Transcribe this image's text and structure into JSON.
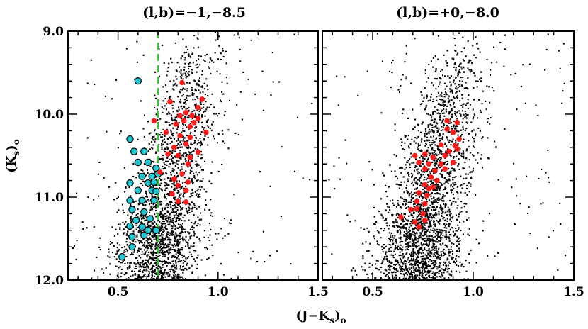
{
  "figure": {
    "xlabel": "(J−K",
    "xlabel_sub": "s",
    "xlabel_tail": ")",
    "xlabel_sub2": "o",
    "ylabel": "(K",
    "ylabel_sub": "s",
    "ylabel_tail": ")",
    "ylabel_sub2": "o"
  },
  "chart_data": [
    {
      "type": "scatter",
      "title": "(l,b)=−1,−8.5",
      "xlabel": "(J−Ks)o",
      "ylabel": "(Ks)o",
      "xlim": [
        0.25,
        1.5
      ],
      "ylim": [
        12.0,
        9.0
      ],
      "y_inverted": true,
      "x_ticks": [
        0.5,
        1.0,
        1.5
      ],
      "x_tick_labels": [
        "0.5",
        "1.0",
        "1.5"
      ],
      "y_ticks": [
        9.0,
        10.0,
        11.0,
        12.0
      ],
      "y_tick_labels": [
        "9.0",
        "10.0",
        "11.0",
        "12.0"
      ],
      "background_field": {
        "color": "#000000",
        "approx_count": 2300,
        "description": "field stars (black points)"
      },
      "vertical_line": {
        "x": 0.7,
        "color": "#22cc22",
        "style": "dashed"
      },
      "series": [
        {
          "name": "blue-selected stars",
          "color": "#1ec8d2",
          "marker": "circle-outlined",
          "points": [
            [
              0.6,
              9.6
            ],
            [
              0.56,
              10.3
            ],
            [
              0.58,
              10.45
            ],
            [
              0.63,
              10.45
            ],
            [
              0.6,
              10.58
            ],
            [
              0.65,
              10.58
            ],
            [
              0.69,
              10.65
            ],
            [
              0.62,
              10.75
            ],
            [
              0.67,
              10.75
            ],
            [
              0.7,
              10.72
            ],
            [
              0.56,
              10.83
            ],
            [
              0.65,
              10.83
            ],
            [
              0.68,
              10.82
            ],
            [
              0.6,
              10.92
            ],
            [
              0.67,
              10.92
            ],
            [
              0.69,
              10.93
            ],
            [
              0.56,
              11.04
            ],
            [
              0.62,
              11.04
            ],
            [
              0.68,
              11.04
            ],
            [
              0.57,
              11.15
            ],
            [
              0.63,
              11.18
            ],
            [
              0.59,
              11.28
            ],
            [
              0.66,
              11.26
            ],
            [
              0.56,
              11.35
            ],
            [
              0.62,
              11.36
            ],
            [
              0.65,
              11.4
            ],
            [
              0.69,
              11.4
            ],
            [
              0.57,
              11.48
            ],
            [
              0.63,
              11.46
            ],
            [
              0.57,
              11.6
            ],
            [
              0.52,
              11.72
            ]
          ]
        },
        {
          "name": "red-selected stars",
          "color": "#ff1a1a",
          "marker": "circle",
          "points": [
            [
              0.82,
              9.62
            ],
            [
              0.92,
              9.82
            ],
            [
              0.9,
              9.92
            ],
            [
              0.76,
              9.85
            ],
            [
              0.84,
              9.98
            ],
            [
              0.81,
              10.02
            ],
            [
              0.87,
              10.02
            ],
            [
              0.9,
              10.05
            ],
            [
              0.83,
              10.08
            ],
            [
              0.88,
              10.1
            ],
            [
              0.79,
              10.12
            ],
            [
              0.86,
              10.15
            ],
            [
              0.74,
              10.22
            ],
            [
              0.81,
              10.26
            ],
            [
              0.86,
              10.28
            ],
            [
              0.94,
              10.22
            ],
            [
              0.78,
              10.4
            ],
            [
              0.84,
              10.36
            ],
            [
              0.75,
              10.48
            ],
            [
              0.8,
              10.5
            ],
            [
              0.86,
              10.52
            ],
            [
              0.9,
              10.46
            ],
            [
              0.85,
              10.6
            ],
            [
              0.71,
              10.7
            ],
            [
              0.78,
              10.78
            ],
            [
              0.82,
              10.72
            ],
            [
              0.85,
              10.82
            ],
            [
              0.8,
              10.86
            ],
            [
              0.84,
              10.92
            ],
            [
              0.77,
              10.96
            ],
            [
              0.8,
              11.05
            ],
            [
              0.84,
              11.06
            ],
            [
              0.68,
              10.08
            ]
          ]
        }
      ]
    },
    {
      "type": "scatter",
      "title": "(l,b)=+0,−8.0",
      "xlabel": "(J−Ks)o",
      "ylabel": "",
      "xlim": [
        0.25,
        1.5
      ],
      "ylim": [
        12.0,
        9.0
      ],
      "y_inverted": true,
      "x_ticks": [
        0.5,
        1.0,
        1.5
      ],
      "x_tick_labels": [
        "0.5",
        "1.0",
        "1.5"
      ],
      "y_ticks": [
        9.0,
        10.0,
        11.0,
        12.0
      ],
      "y_tick_labels": [],
      "background_field": {
        "color": "#000000",
        "approx_count": 2600,
        "description": "field stars (black points)"
      },
      "series": [
        {
          "name": "red-selected stars",
          "color": "#ff1a1a",
          "marker": "circle",
          "points": [
            [
              0.87,
              10.08
            ],
            [
              0.92,
              10.1
            ],
            [
              0.87,
              10.18
            ],
            [
              0.9,
              10.22
            ],
            [
              0.93,
              10.3
            ],
            [
              0.91,
              10.38
            ],
            [
              0.84,
              10.37
            ],
            [
              0.88,
              10.45
            ],
            [
              0.92,
              10.42
            ],
            [
              0.71,
              10.5
            ],
            [
              0.76,
              10.48
            ],
            [
              0.8,
              10.52
            ],
            [
              0.86,
              10.5
            ],
            [
              0.73,
              10.58
            ],
            [
              0.78,
              10.6
            ],
            [
              0.84,
              10.6
            ],
            [
              0.9,
              10.58
            ],
            [
              0.76,
              10.66
            ],
            [
              0.81,
              10.68
            ],
            [
              0.86,
              10.66
            ],
            [
              0.79,
              10.76
            ],
            [
              0.82,
              10.8
            ],
            [
              0.76,
              10.85
            ],
            [
              0.8,
              10.88
            ],
            [
              0.73,
              10.95
            ],
            [
              0.77,
              10.98
            ],
            [
              0.72,
              11.05
            ],
            [
              0.76,
              11.08
            ],
            [
              0.72,
              11.14
            ],
            [
              0.69,
              11.15
            ],
            [
              0.75,
              11.2
            ],
            [
              0.64,
              11.24
            ],
            [
              0.76,
              11.28
            ],
            [
              0.71,
              11.3
            ],
            [
              0.73,
              11.36
            ],
            [
              0.78,
              10.9
            ]
          ]
        }
      ]
    }
  ]
}
